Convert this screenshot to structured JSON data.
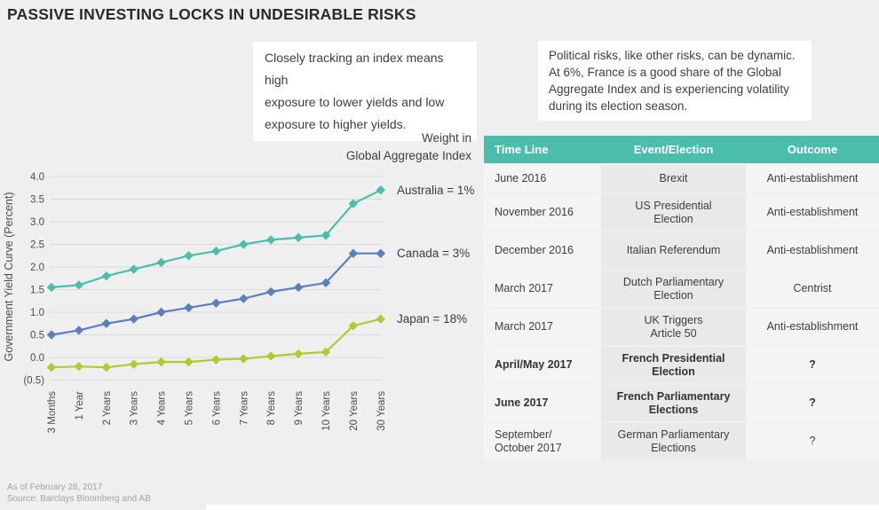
{
  "title": "PASSIVE INVESTING LOCKS IN UNDESIRABLE RISKS",
  "colors": {
    "teal": "#4bbeab",
    "blue": "#5c7ebe",
    "olive": "#b4c832",
    "grid": "#d9d9d9",
    "page_bg": "#efefef",
    "table_row_bg": "#f4f4f4",
    "table_event_bg": "#e9e9e9"
  },
  "callouts": {
    "index_note": "Closely tracking an index means high\nexposure to lower yields and low\nexposure to higher yields.",
    "political_note": "Political risks, like other risks, can be dynamic.\nAt 6%, France is a good share of the Global\nAggregate Index and is experiencing volatility\nduring its election season."
  },
  "chart_data": {
    "type": "line",
    "title": "",
    "xlabel": "",
    "ylabel": "Government Yield Curve  (Percent)",
    "weight_heading": "Weight in\nGlobal Aggregate Index",
    "grid": true,
    "legend_position": "right of line ends",
    "marker": "diamond",
    "categories": [
      "3 Months",
      "1 Year",
      "2 Years",
      "3 Years",
      "4 Years",
      "5 Years",
      "6 Years",
      "7 Years",
      "8 Years",
      "9 Years",
      "10 Years",
      "20 Years",
      "30 Years"
    ],
    "ylim": [
      -0.5,
      4.0
    ],
    "yticks": [
      {
        "value": 4.0,
        "label": "4.0"
      },
      {
        "value": 3.5,
        "label": "3.5"
      },
      {
        "value": 3.0,
        "label": "3.0"
      },
      {
        "value": 2.5,
        "label": "2.5"
      },
      {
        "value": 2.0,
        "label": "2.0"
      },
      {
        "value": 1.5,
        "label": "1.5"
      },
      {
        "value": 1.0,
        "label": "1.0"
      },
      {
        "value": 0.5,
        "label": "0.5"
      },
      {
        "value": 0.0,
        "label": "0.0"
      },
      {
        "value": -0.5,
        "label": "(0.5)"
      }
    ],
    "series": [
      {
        "name": "Australia",
        "label": "Australia = 1%",
        "color": "#4bbeab",
        "values": [
          1.55,
          1.6,
          1.8,
          1.95,
          2.1,
          2.25,
          2.35,
          2.5,
          2.6,
          2.65,
          2.7,
          3.4,
          3.7
        ]
      },
      {
        "name": "Canada",
        "label": "Canada = 3%",
        "color": "#5c7ebe",
        "values": [
          0.5,
          0.6,
          0.75,
          0.85,
          1.0,
          1.1,
          1.2,
          1.3,
          1.45,
          1.55,
          1.65,
          2.3,
          2.3
        ]
      },
      {
        "name": "Japan",
        "label": "Japan = 18%",
        "color": "#b4c832",
        "values": [
          -0.22,
          -0.2,
          -0.22,
          -0.15,
          -0.1,
          -0.1,
          -0.05,
          -0.03,
          0.03,
          0.08,
          0.12,
          0.7,
          0.85
        ]
      }
    ]
  },
  "table": {
    "columns": [
      "Time Line",
      "Event/Election",
      "Outcome"
    ],
    "rows": [
      {
        "timeline": "June 2016",
        "event": "Brexit",
        "outcome": "Anti-establishment",
        "bold": false
      },
      {
        "timeline": "November 2016",
        "event": "US Presidential\nElection",
        "outcome": "Anti-establishment",
        "bold": false
      },
      {
        "timeline": "December 2016",
        "event": "Italian Referendum",
        "outcome": "Anti-establishment",
        "bold": false
      },
      {
        "timeline": "March 2017",
        "event": "Dutch Parliamentary\nElection",
        "outcome": "Centrist",
        "bold": false
      },
      {
        "timeline": "March 2017",
        "event": "UK Triggers\nArticle 50",
        "outcome": "Anti-establishment",
        "bold": false
      },
      {
        "timeline": "April/May 2017",
        "event": "French Presidential\nElection",
        "outcome": "?",
        "bold": true
      },
      {
        "timeline": "June 2017",
        "event": "French Parliamentary\nElections",
        "outcome": "?",
        "bold": true
      },
      {
        "timeline": "September/\nOctober 2017",
        "event": "German Parliamentary\nElections",
        "outcome": "?",
        "bold": false
      }
    ]
  },
  "footer": {
    "as_of": "As of February 28, 2017",
    "source": "Source: Barclays Bloomberg and AB"
  }
}
